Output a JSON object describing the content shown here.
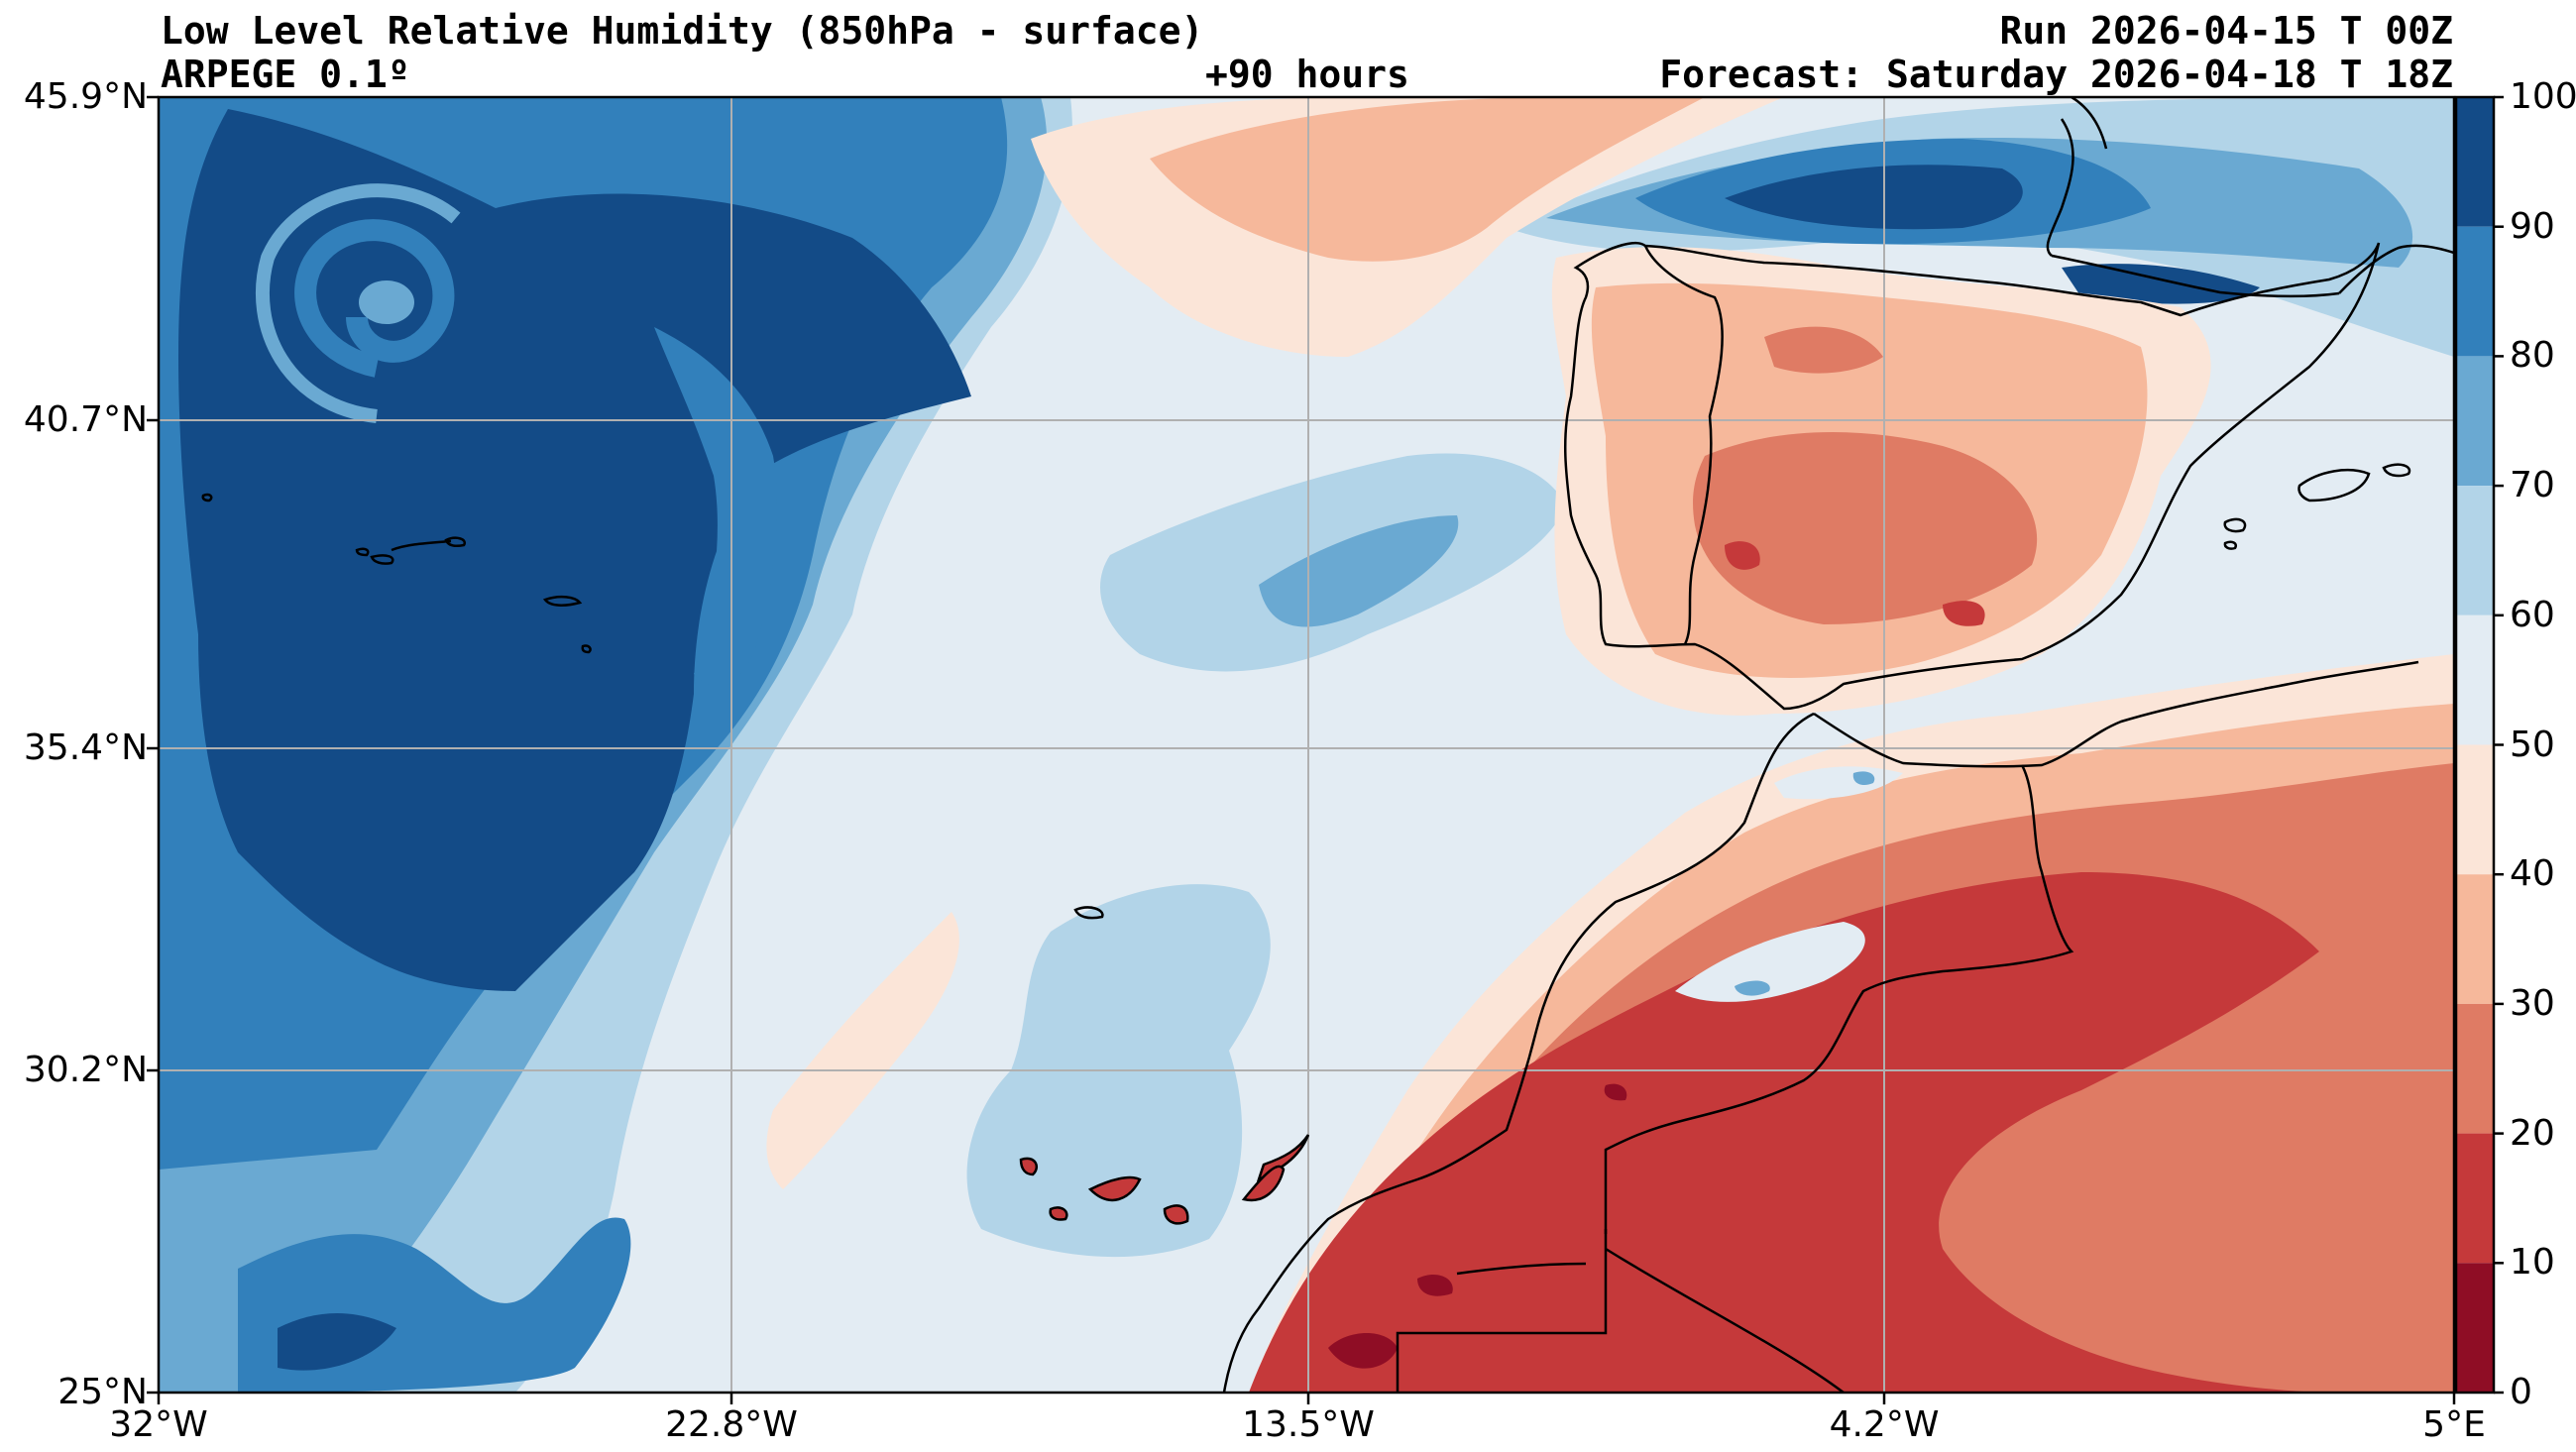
{
  "header": {
    "title": "Low Level Relative Humidity (850hPa - surface)",
    "model": "ARPEGE 0.1º",
    "lead_time": "+90 hours",
    "run": "Run 2026-04-15 T 00Z",
    "forecast": "Forecast: Saturday 2026-04-18 T 18Z"
  },
  "axes": {
    "lat_ticks": [
      "45.9°N",
      "40.7°N",
      "35.4°N",
      "30.2°N",
      "25°N"
    ],
    "lon_ticks": [
      "32°W",
      "22.8°W",
      "13.5°W",
      "4.2°W",
      "5°E"
    ]
  },
  "colorbar": {
    "ticks": [
      "100",
      "90",
      "80",
      "70",
      "60",
      "50",
      "40",
      "30",
      "20",
      "10",
      "0"
    ],
    "bands": [
      {
        "from": 90,
        "to": 100,
        "color": "#134b87"
      },
      {
        "from": 80,
        "to": 90,
        "color": "#3280bb"
      },
      {
        "from": 70,
        "to": 80,
        "color": "#6aa9d2"
      },
      {
        "from": 60,
        "to": 70,
        "color": "#b2d4e8"
      },
      {
        "from": 50,
        "to": 60,
        "color": "#e3ecf3"
      },
      {
        "from": 40,
        "to": 50,
        "color": "#fbe5d8"
      },
      {
        "from": 30,
        "to": 40,
        "color": "#f6b89b"
      },
      {
        "from": 20,
        "to": 30,
        "color": "#df7b64"
      },
      {
        "from": 10,
        "to": 20,
        "color": "#c5393a"
      },
      {
        "from": 0,
        "to": 10,
        "color": "#8f0d25"
      }
    ]
  },
  "chart_data": {
    "type": "heatmap",
    "title": "Low Level Relative Humidity (850hPa - surface)",
    "variable": "relative humidity (%)",
    "lon_range": [
      -32,
      5
    ],
    "lat_range": [
      25,
      45.9
    ],
    "levels": [
      0,
      10,
      20,
      30,
      40,
      50,
      60,
      70,
      80,
      90,
      100
    ],
    "colorbar_range": [
      0,
      100
    ],
    "grid": true
  }
}
